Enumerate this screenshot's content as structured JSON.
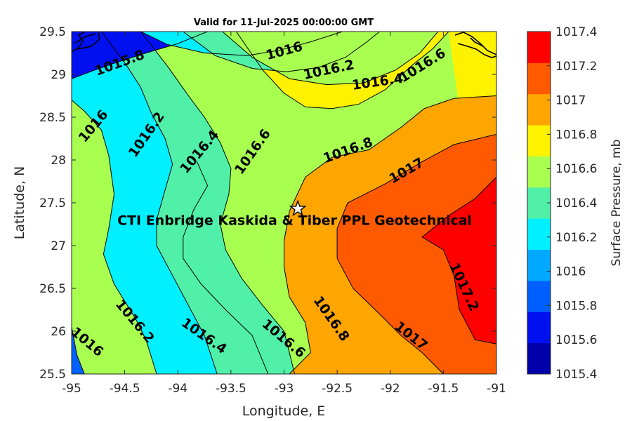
{
  "chart_data": {
    "type": "contour",
    "title": "Valid for 11-Jul-2025 00:00:00 GMT",
    "xlabel": "Longitude, E",
    "ylabel": "Latitude, N",
    "xlim": [
      -95,
      -91
    ],
    "ylim": [
      25.5,
      29.5
    ],
    "x_ticks": [
      "-95",
      "-94.5",
      "-94",
      "-93.5",
      "-93",
      "-92.5",
      "-92",
      "-91.5",
      "-91"
    ],
    "y_ticks": [
      "25.5",
      "26",
      "26.5",
      "27",
      "27.5",
      "28",
      "28.5",
      "29",
      "29.5"
    ],
    "colorbar": {
      "label": "Surface Pressure, mb",
      "levels": [
        1015.4,
        1015.6,
        1015.8,
        1016.0,
        1016.2,
        1016.4,
        1016.6,
        1016.8,
        1017.0,
        1017.2,
        1017.4
      ],
      "tick_labels": [
        "1015.4",
        "1015.6",
        "1015.8",
        "1016",
        "1016.2",
        "1016.4",
        "1016.6",
        "1016.8",
        "1017",
        "1017.2",
        "1017.4"
      ],
      "colors": [
        "#0000AA",
        "#0010F0",
        "#0060FF",
        "#00A8FF",
        "#00F0FF",
        "#50F0A8",
        "#A8FF50",
        "#FFF200",
        "#FFA500",
        "#FF5A00",
        "#FF0000"
      ]
    },
    "contours": [
      {
        "level": 1015.8,
        "label": "1015.8",
        "points": [
          [
            -95,
            28.95
          ],
          [
            -94.85,
            29.02
          ],
          [
            -94.6,
            29.13
          ],
          [
            -94.3,
            29.25
          ],
          [
            -94.0,
            29.36
          ],
          [
            -93.72,
            29.5
          ]
        ]
      },
      {
        "level": 1016.0,
        "label": "1016",
        "points": [
          [
            -94.88,
            25.5
          ],
          [
            -94.95,
            25.72
          ],
          [
            -95,
            26.05
          ]
        ]
      },
      {
        "level": 1016.0,
        "label": "1016",
        "points": [
          [
            -95,
            28.7
          ],
          [
            -94.88,
            28.57
          ],
          [
            -94.72,
            28.35
          ],
          [
            -94.65,
            28.05
          ],
          [
            -94.6,
            27.6
          ],
          [
            -94.65,
            27.2
          ],
          [
            -94.7,
            26.9
          ],
          [
            -94.6,
            26.55
          ],
          [
            -94.4,
            26.15
          ],
          [
            -94.3,
            25.9
          ],
          [
            -94.2,
            25.5
          ]
        ]
      },
      {
        "level": 1016.0,
        "label": "1016",
        "points": [
          [
            -94.35,
            29.5
          ],
          [
            -94.1,
            29.35
          ],
          [
            -93.75,
            29.25
          ],
          [
            -93.35,
            29.22
          ],
          [
            -93.05,
            29.28
          ],
          [
            -92.75,
            29.38
          ],
          [
            -92.45,
            29.5
          ]
        ]
      },
      {
        "level": 1016.2,
        "label": "1016.2",
        "points": [
          [
            -94.72,
            29.5
          ],
          [
            -94.6,
            29.3
          ],
          [
            -94.48,
            29.1
          ],
          [
            -94.35,
            28.85
          ],
          [
            -94.25,
            28.55
          ],
          [
            -94.12,
            28.25
          ],
          [
            -94.05,
            27.95
          ],
          [
            -94.12,
            27.65
          ],
          [
            -94.2,
            27.3
          ],
          [
            -94.2,
            27.0
          ],
          [
            -94.05,
            26.65
          ],
          [
            -93.9,
            26.3
          ],
          [
            -93.75,
            25.95
          ],
          [
            -93.63,
            25.5
          ]
        ]
      },
      {
        "level": 1016.2,
        "label": "1016.2",
        "points": [
          [
            -93.95,
            29.5
          ],
          [
            -93.65,
            29.22
          ],
          [
            -93.3,
            29.07
          ],
          [
            -92.98,
            29.03
          ],
          [
            -92.68,
            29.08
          ],
          [
            -92.42,
            29.2
          ],
          [
            -92.22,
            29.38
          ],
          [
            -92.1,
            29.5
          ]
        ]
      },
      {
        "level": 1016.4,
        "label": "1016.4",
        "points": [
          [
            -94.35,
            29.5
          ],
          [
            -94.1,
            29.1
          ],
          [
            -93.9,
            28.75
          ],
          [
            -93.75,
            28.5
          ],
          [
            -93.6,
            28.2
          ],
          [
            -93.5,
            27.9
          ],
          [
            -93.52,
            27.6
          ],
          [
            -93.6,
            27.25
          ],
          [
            -93.55,
            26.95
          ],
          [
            -93.4,
            26.62
          ],
          [
            -93.2,
            26.3
          ],
          [
            -93.0,
            26.0
          ],
          [
            -92.9,
            25.5
          ]
        ]
      },
      {
        "level": 1016.4,
        "label": "1016.4",
        "points": [
          [
            -93.58,
            29.5
          ],
          [
            -93.3,
            29.2
          ],
          [
            -92.95,
            28.95
          ],
          [
            -92.6,
            28.88
          ],
          [
            -92.25,
            28.9
          ],
          [
            -91.95,
            29.05
          ],
          [
            -91.72,
            29.25
          ],
          [
            -91.55,
            29.5
          ]
        ]
      },
      {
        "level": 1016.6,
        "label": "1016.6",
        "points": [
          [
            -93.45,
            29.5
          ],
          [
            -93.2,
            29.05
          ],
          [
            -93.0,
            28.78
          ],
          [
            -92.8,
            28.62
          ],
          [
            -92.55,
            28.6
          ],
          [
            -92.3,
            28.65
          ],
          [
            -92.05,
            28.82
          ],
          [
            -91.8,
            29.1
          ],
          [
            -91.6,
            29.3
          ],
          [
            -91.45,
            29.5
          ]
        ]
      },
      {
        "level": 1016.6,
        "label": "1016.6",
        "points": [
          [
            -93.82,
            27.98
          ],
          [
            -93.72,
            27.7
          ],
          [
            -93.85,
            27.42
          ],
          [
            -93.95,
            27.1
          ],
          [
            -93.95,
            26.85
          ],
          [
            -93.78,
            26.55
          ],
          [
            -93.55,
            26.25
          ],
          [
            -93.3,
            25.95
          ],
          [
            -93.15,
            25.5
          ]
        ]
      },
      {
        "level": 1016.8,
        "label": "1016.8",
        "points": [
          [
            -92.95,
            25.5
          ],
          [
            -92.75,
            25.75
          ],
          [
            -92.8,
            26.1
          ],
          [
            -92.95,
            26.4
          ],
          [
            -93.0,
            26.75
          ],
          [
            -93.0,
            27.05
          ],
          [
            -92.95,
            27.4
          ],
          [
            -92.8,
            27.8
          ],
          [
            -92.55,
            28.03
          ],
          [
            -92.2,
            28.12
          ],
          [
            -91.9,
            28.38
          ],
          [
            -91.68,
            28.6
          ],
          [
            -91.4,
            28.72
          ],
          [
            -91.0,
            28.75
          ]
        ]
      },
      {
        "level": 1017.0,
        "label": "1017",
        "points": [
          [
            -91.5,
            25.5
          ],
          [
            -91.7,
            25.75
          ],
          [
            -91.9,
            25.95
          ],
          [
            -92.1,
            26.2
          ],
          [
            -92.35,
            26.5
          ],
          [
            -92.5,
            26.85
          ],
          [
            -92.5,
            27.2
          ],
          [
            -92.4,
            27.5
          ],
          [
            -92.05,
            27.72
          ],
          [
            -91.7,
            27.98
          ],
          [
            -91.4,
            28.18
          ],
          [
            -91.0,
            28.3
          ]
        ]
      },
      {
        "level": 1017.2,
        "label": "1017.2",
        "points": [
          [
            -91.0,
            27.8
          ],
          [
            -91.2,
            27.55
          ],
          [
            -91.45,
            27.35
          ],
          [
            -91.7,
            27.1
          ],
          [
            -91.5,
            26.95
          ],
          [
            -91.4,
            26.65
          ],
          [
            -91.35,
            26.25
          ],
          [
            -91.2,
            25.9
          ],
          [
            -91.0,
            25.85
          ]
        ]
      }
    ],
    "inline_labels": [
      {
        "text": "1015.8",
        "x": -94.55,
        "y": 29.14,
        "angle": -20
      },
      {
        "text": "1016",
        "x": -93.0,
        "y": 29.28,
        "angle": -15
      },
      {
        "text": "1016.2",
        "x": -92.58,
        "y": 29.06,
        "angle": -12
      },
      {
        "text": "1016.4",
        "x": -92.12,
        "y": 28.92,
        "angle": -8
      },
      {
        "text": "1016.6",
        "x": -91.7,
        "y": 29.11,
        "angle": -32
      },
      {
        "text": "1016",
        "x": -94.8,
        "y": 28.4,
        "angle": -50
      },
      {
        "text": "1016.2",
        "x": -94.3,
        "y": 28.3,
        "angle": -55
      },
      {
        "text": "1016.4",
        "x": -93.8,
        "y": 28.1,
        "angle": -50
      },
      {
        "text": "1016.6",
        "x": -93.3,
        "y": 28.1,
        "angle": -55
      },
      {
        "text": "1016.8",
        "x": -92.4,
        "y": 28.12,
        "angle": -20
      },
      {
        "text": "1017",
        "x": -91.85,
        "y": 27.88,
        "angle": -30
      },
      {
        "text": "1016.2",
        "x": -94.4,
        "y": 26.12,
        "angle": 50
      },
      {
        "text": "1016",
        "x": -94.85,
        "y": 25.88,
        "angle": 40
      },
      {
        "text": "1016.4",
        "x": -93.75,
        "y": 25.95,
        "angle": 35
      },
      {
        "text": "1016.6",
        "x": -93.0,
        "y": 25.92,
        "angle": 40
      },
      {
        "text": "1016.8",
        "x": -92.55,
        "y": 26.15,
        "angle": 55
      },
      {
        "text": "1017.2",
        "x": -91.3,
        "y": 26.52,
        "angle": 65
      },
      {
        "text": "1017",
        "x": -91.8,
        "y": 25.95,
        "angle": 38
      }
    ],
    "annotations": [
      {
        "text": "CTI Enbridge  Kaskida & Tiber PPL Geotechnical",
        "x": -92.9,
        "y": 27.3,
        "marker": "star",
        "marker_x": -92.87,
        "marker_y": 27.43
      }
    ],
    "grid": false
  }
}
